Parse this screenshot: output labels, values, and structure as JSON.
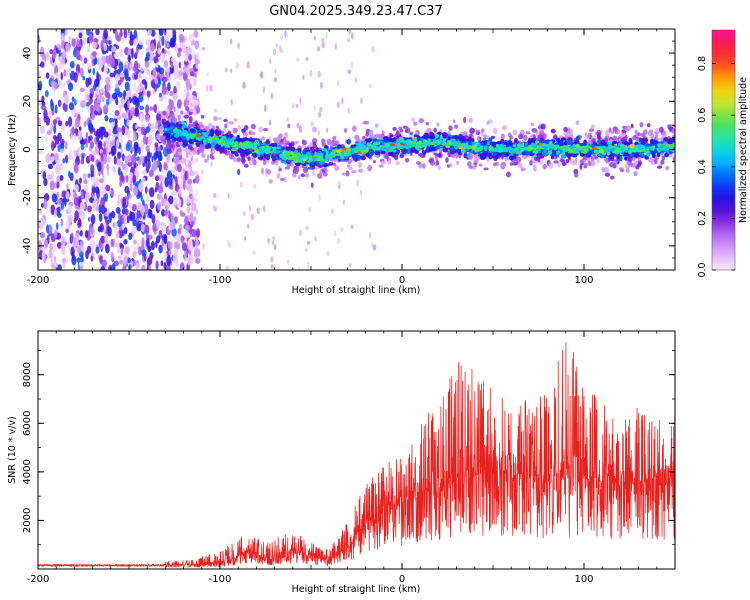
{
  "title": "GN04.2025.349.23.47.C37",
  "colors": {
    "snr_line": "#e8201e",
    "frame": "#000000",
    "colormap": [
      "#f8e6ff",
      "#dca8f8",
      "#b060ee",
      "#6a0fd6",
      "#1e14e6",
      "#0060ff",
      "#00c4ff",
      "#22e6b0",
      "#50e050",
      "#c8e632",
      "#ffc800",
      "#ff5a1e",
      "#ff1e3c",
      "#ff1496"
    ]
  },
  "chart_data": [
    {
      "type": "heatmap",
      "name": "spectrogram",
      "title": "GN04.2025.349.23.47.C37",
      "xlabel": "Height of straight line (km)",
      "ylabel": "Frequency (Hz)",
      "xlim": [
        -200,
        150
      ],
      "ylim": [
        -50,
        50
      ],
      "xticks": [
        {
          "value": -200,
          "label": "-200"
        },
        {
          "value": -100,
          "label": "-100"
        },
        {
          "value": 0,
          "label": "0"
        },
        {
          "value": 100,
          "label": "100"
        }
      ],
      "yticks": [
        {
          "value": -40,
          "label": "-40"
        },
        {
          "value": -20,
          "label": "-20"
        },
        {
          "value": 0,
          "label": "0"
        },
        {
          "value": 20,
          "label": "20"
        },
        {
          "value": 40,
          "label": "40"
        }
      ],
      "ridge_frequency": {
        "x": [
          -130,
          -110,
          -90,
          -70,
          -55,
          -45,
          -30,
          -15,
          0,
          20,
          40,
          60,
          80,
          100,
          120,
          150
        ],
        "y": [
          8,
          5,
          2,
          -1,
          -4,
          -3,
          -1,
          1,
          2,
          3,
          1,
          0,
          1,
          0,
          0,
          1
        ]
      },
      "colorbar": {
        "label": "Normalized spectral amplitude",
        "range": [
          0.0,
          0.93
        ],
        "ticks": [
          {
            "value": 0.0,
            "label": "0.0"
          },
          {
            "value": 0.2,
            "label": "0.2"
          },
          {
            "value": 0.4,
            "label": "0.4"
          },
          {
            "value": 0.6,
            "label": "0.6"
          },
          {
            "value": 0.8,
            "label": "0.8"
          }
        ]
      }
    },
    {
      "type": "line",
      "name": "snr",
      "xlabel": "Height of straight line (km)",
      "ylabel": "SNR (10 * v/v)",
      "xlim": [
        -200,
        150
      ],
      "ylim": [
        0,
        9800
      ],
      "xticks": [
        {
          "value": -200,
          "label": "-200"
        },
        {
          "value": -100,
          "label": "-100"
        },
        {
          "value": 0,
          "label": "0"
        },
        {
          "value": 100,
          "label": "100"
        }
      ],
      "yticks": [
        {
          "value": 2000,
          "label": "2000"
        },
        {
          "value": 4000,
          "label": "4000"
        },
        {
          "value": 6000,
          "label": "6000"
        },
        {
          "value": 8000,
          "label": "8000"
        }
      ],
      "envelope": {
        "x": [
          -200,
          -150,
          -120,
          -100,
          -90,
          -85,
          -75,
          -60,
          -50,
          -40,
          -30,
          -20,
          -10,
          0,
          10,
          20,
          30,
          40,
          50,
          60,
          70,
          80,
          90,
          100,
          110,
          120,
          130,
          150
        ],
        "baseline": [
          150,
          150,
          160,
          250,
          500,
          700,
          400,
          700,
          500,
          350,
          800,
          1700,
          2300,
          2700,
          3000,
          3300,
          3600,
          3800,
          3900,
          3900,
          3700,
          3600,
          3700,
          3700,
          3600,
          3500,
          3500,
          3400
        ],
        "peaks": [
          250,
          300,
          350,
          700,
          1300,
          1500,
          1100,
          1600,
          1100,
          800,
          2000,
          3500,
          4300,
          4700,
          6000,
          7000,
          8600,
          8300,
          7300,
          6800,
          7000,
          7600,
          9800,
          7800,
          6900,
          6600,
          6800,
          6400
        ]
      }
    }
  ]
}
